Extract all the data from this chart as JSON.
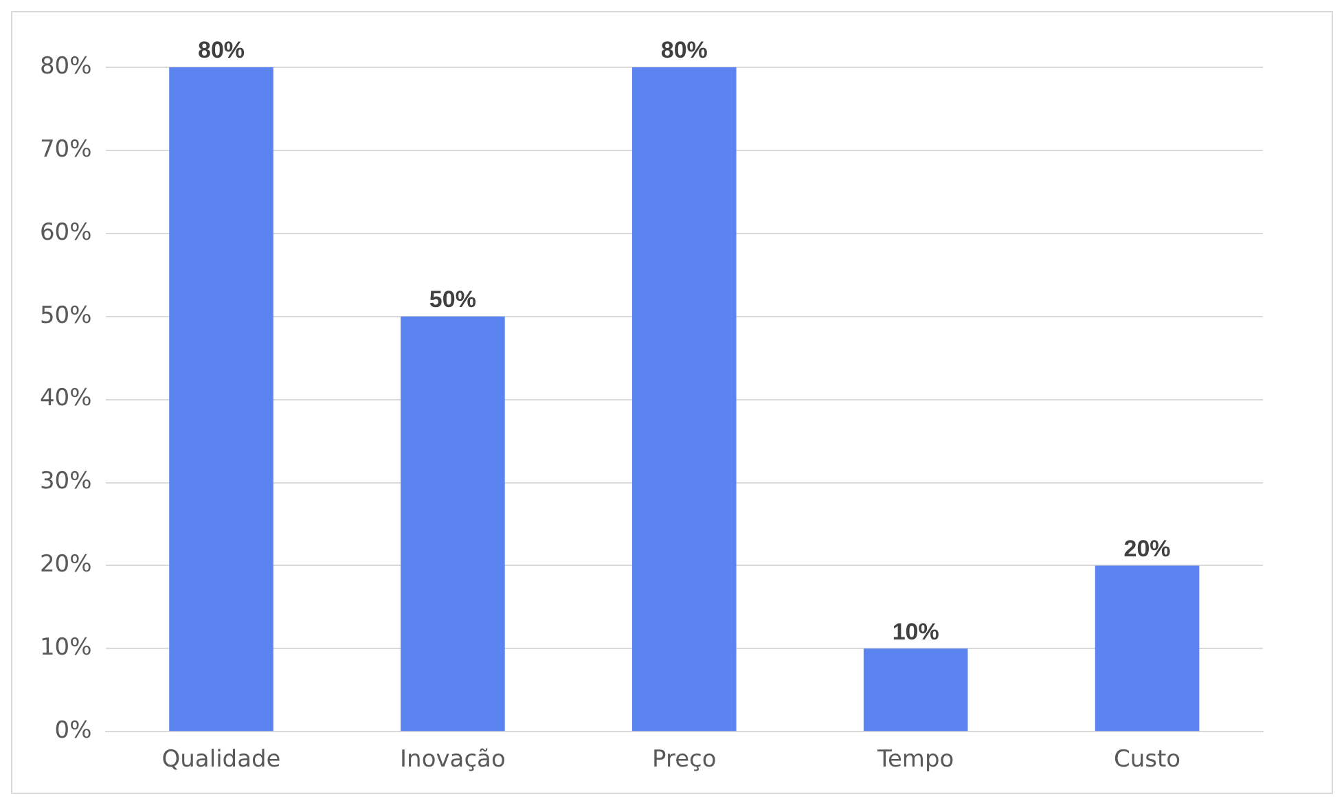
{
  "chart_data": {
    "type": "bar",
    "categories": [
      "Qualidade",
      "Inovação",
      "Preço",
      "Tempo",
      "Custo"
    ],
    "values": [
      80,
      50,
      80,
      10,
      20
    ],
    "color": "#5b84f0",
    "value_labels": [
      "80%",
      "50%",
      "80%",
      "10%",
      "20%"
    ],
    "ylim": [
      0,
      80
    ],
    "yticks": [
      {
        "value": 0,
        "label": "0%"
      },
      {
        "value": 10,
        "label": "10%"
      },
      {
        "value": 20,
        "label": "20%"
      },
      {
        "value": 30,
        "label": "30%"
      },
      {
        "value": 40,
        "label": "40%"
      },
      {
        "value": 50,
        "label": "50%"
      },
      {
        "value": 60,
        "label": "60%"
      },
      {
        "value": 70,
        "label": "70%"
      },
      {
        "value": 80,
        "label": "80%"
      }
    ],
    "grid": "y",
    "legend": false
  }
}
